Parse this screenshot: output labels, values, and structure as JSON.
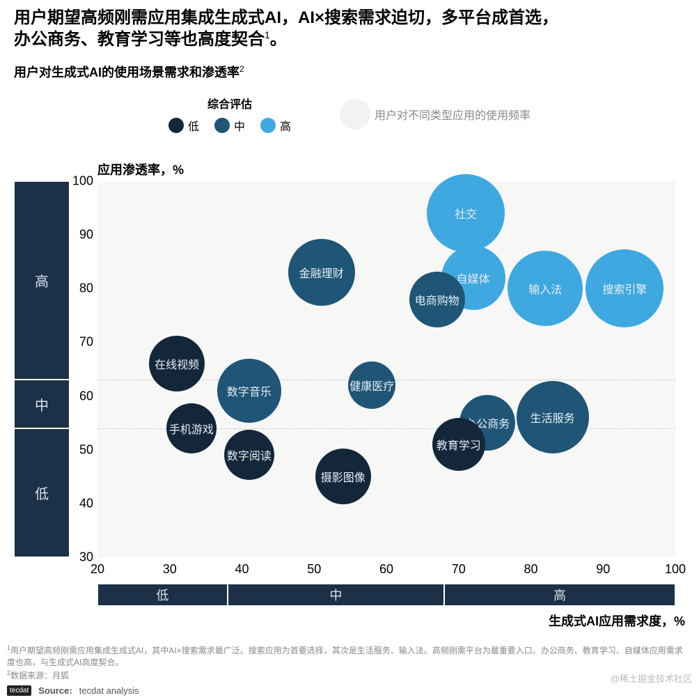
{
  "title_line1": "用户期望高频刚需应用集成生成式AI，AI×搜索需求迫切，多平台成首选，",
  "title_line2": "办公商务、教育学习等也高度契合",
  "title_sup": "1",
  "title_period": "。",
  "subtitle": "用户对生成式AI的使用场景需求和渗透率",
  "subtitle_sup": "2",
  "legend": {
    "title": "综合评估",
    "items": [
      {
        "label": "低",
        "color": "#14273a"
      },
      {
        "label": "中",
        "color": "#1f5576"
      },
      {
        "label": "高",
        "color": "#3fa8e0"
      }
    ],
    "size_label": "用户对不同类型应用的使用频率",
    "size_color": "#f2f2f2"
  },
  "y_axis_title": "应用渗透率，%",
  "x_axis_title": "生成式AI应用需求度，%",
  "y_lim": [
    30,
    100
  ],
  "x_lim": [
    20,
    100
  ],
  "y_ticks": [
    30,
    40,
    50,
    60,
    70,
    80,
    90,
    100
  ],
  "x_ticks": [
    20,
    30,
    40,
    50,
    60,
    70,
    80,
    90,
    100
  ],
  "y_categories": [
    {
      "label": "高",
      "from": 63,
      "to": 100
    },
    {
      "label": "中",
      "from": 54,
      "to": 63
    },
    {
      "label": "低",
      "from": 30,
      "to": 54
    }
  ],
  "x_categories": [
    {
      "label": "低",
      "from": 20,
      "to": 38
    },
    {
      "label": "中",
      "from": 38,
      "to": 68
    },
    {
      "label": "高",
      "from": 68,
      "to": 100
    }
  ],
  "grid_dash_y": [
    54,
    63
  ],
  "colors": {
    "low": "#14273a",
    "mid": "#1f5576",
    "high": "#3fa8e0",
    "cat_bg": "#1c3147",
    "cat_text": "#d8e2ea",
    "plot_bg": "#f7f7f6"
  },
  "bubbles": [
    {
      "label": "社交",
      "x": 71,
      "y": 94,
      "r": 56,
      "level": "high"
    },
    {
      "label": "自媒体",
      "x": 72,
      "y": 82,
      "r": 46,
      "level": "high"
    },
    {
      "label": "输入法",
      "x": 82,
      "y": 80,
      "r": 54,
      "level": "high"
    },
    {
      "label": "搜索引擎",
      "x": 93,
      "y": 80,
      "r": 56,
      "level": "high"
    },
    {
      "label": "金融理财",
      "x": 51,
      "y": 83,
      "r": 48,
      "level": "mid"
    },
    {
      "label": "电商购物",
      "x": 67,
      "y": 78,
      "r": 40,
      "level": "mid"
    },
    {
      "label": "健康医疗",
      "x": 58,
      "y": 62,
      "r": 34,
      "level": "mid"
    },
    {
      "label": "数字音乐",
      "x": 41,
      "y": 61,
      "r": 46,
      "level": "mid"
    },
    {
      "label": "办公商务",
      "x": 74,
      "y": 55,
      "r": 40,
      "level": "mid"
    },
    {
      "label": "生活服务",
      "x": 83,
      "y": 56,
      "r": 52,
      "level": "mid"
    },
    {
      "label": "在线视频",
      "x": 31,
      "y": 66,
      "r": 40,
      "level": "low"
    },
    {
      "label": "手机游戏",
      "x": 33,
      "y": 54,
      "r": 36,
      "level": "low"
    },
    {
      "label": "数字阅读",
      "x": 41,
      "y": 49,
      "r": 36,
      "level": "low"
    },
    {
      "label": "摄影图像",
      "x": 54,
      "y": 45,
      "r": 40,
      "level": "low"
    },
    {
      "label": "教育学习",
      "x": 70,
      "y": 51,
      "r": 38,
      "level": "low"
    }
  ],
  "footnote1_sup": "1",
  "footnote1": "用户期望高频刚需应用集成生成式AI，其中AI×搜索需求最广泛。搜索应用为首要选择，其次是生活服务、输入法。高频刚需平台为最重要入口。办公商务、教育学习、自媒体应用需求度也高，与生成式AI高度契合。",
  "footnote2_sup": "2",
  "footnote2": "数据来源：月狐",
  "source_badge": "tecdat",
  "source_label": "Source:",
  "source_value": "tecdat analysis",
  "watermark": "@稀土掘金技术社区"
}
